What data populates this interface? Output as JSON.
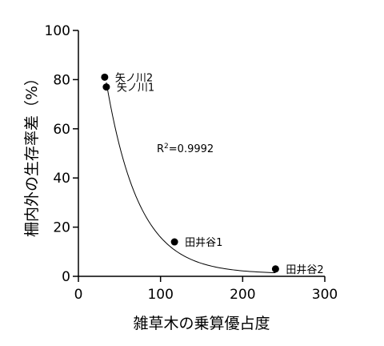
{
  "chart_data": {
    "type": "scatter",
    "title": "",
    "xlabel": "雑草木の乗算優占度",
    "ylabel": "柵内外の生存率差（%）",
    "xlim": [
      0,
      300
    ],
    "ylim": [
      0,
      100
    ],
    "xticks": [
      0,
      100,
      200,
      300
    ],
    "yticks": [
      0,
      20,
      40,
      60,
      80,
      100
    ],
    "grid": false,
    "points": [
      {
        "label": "矢ノ川2",
        "x": 32,
        "y": 81
      },
      {
        "label": "矢ノ川1",
        "x": 34,
        "y": 77
      },
      {
        "label": "田井谷1",
        "x": 117,
        "y": 14
      },
      {
        "label": "田井谷2",
        "x": 240,
        "y": 3
      }
    ],
    "fit": {
      "type": "exponential",
      "r2_text": "R²=0.9992",
      "a": 182.5,
      "k": 0.02505,
      "c": 1.0,
      "x_start": 34,
      "x_end": 240
    }
  }
}
